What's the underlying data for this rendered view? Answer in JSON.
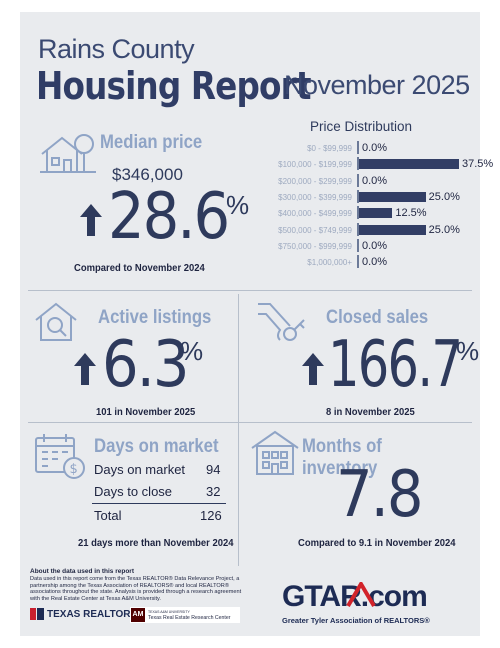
{
  "header": {
    "county": "Rains County",
    "report": "Housing Report",
    "month": "November 2025"
  },
  "price_distribution": {
    "title": "Price Distribution",
    "rows": [
      {
        "label": "$0 - $99,999",
        "value": 0.0,
        "display": "0.0%"
      },
      {
        "label": "$100,000 - $199,999",
        "value": 37.5,
        "display": "37.5%"
      },
      {
        "label": "$200,000 - $299,999",
        "value": 0.0,
        "display": "0.0%"
      },
      {
        "label": "$300,000 - $399,999",
        "value": 25.0,
        "display": "25.0%"
      },
      {
        "label": "$400,000 - $499,999",
        "value": 12.5,
        "display": "12.5%"
      },
      {
        "label": "$500,000 - $749,999",
        "value": 25.0,
        "display": "25.0%"
      },
      {
        "label": "$750,000 - $999,999",
        "value": 0.0,
        "display": "0.0%"
      },
      {
        "label": "$1,000,000+",
        "value": 0.0,
        "display": "0.0%"
      }
    ]
  },
  "chart_data": {
    "type": "bar",
    "title": "Price Distribution",
    "categories": [
      "$0 - $99,999",
      "$100,000 - $199,999",
      "$200,000 - $299,999",
      "$300,000 - $399,999",
      "$400,000 - $499,999",
      "$500,000 - $749,999",
      "$750,000 - $999,999",
      "$1,000,000+"
    ],
    "values": [
      0.0,
      37.5,
      0.0,
      25.0,
      12.5,
      25.0,
      0.0,
      0.0
    ],
    "orientation": "horizontal",
    "unit": "%"
  },
  "median_price": {
    "label": "Median price",
    "value": "$346,000",
    "change": "28.6",
    "pct": "%",
    "compare": "Compared to November 2024"
  },
  "active_listings": {
    "label": "Active listings",
    "change": "6.3",
    "pct": "%",
    "note": "101 in November 2025"
  },
  "closed_sales": {
    "label": "Closed sales",
    "change": "166.7",
    "pct": "%",
    "note": "8 in November 2025"
  },
  "days_on_market": {
    "label": "Days on market",
    "rows": [
      {
        "label": "Days on market",
        "value": "94"
      },
      {
        "label": "Days to close",
        "value": "32"
      }
    ],
    "total_label": "Total",
    "total_value": "126",
    "note": "21 days more than November 2024"
  },
  "months_inventory": {
    "label": "Months of inventory",
    "value": "7.8",
    "compare": "Compared to 9.1 in November 2024"
  },
  "footer": {
    "about_title": "About the data used in this report",
    "about_text": "Data used in this report come from the Texas REALTOR® Data Relevance Project, a partnership among the Texas Association of REALTORS® and local REALTOR® associations throughout the state. Analysis is provided through a research agreement with the Real Estate Center at Texas A&M University.",
    "texas_realtors": "TEXAS REALTORS",
    "tamu_small": "TEXAS A&M UNIVERSITY",
    "tamu_center": "Texas Real Estate Research Center",
    "gtar_brand": "GTAR.com",
    "gtar_full": "Greater Tyler Association of REALTORS®"
  },
  "colors": {
    "background": "#e9ebee",
    "navy": "#2e3a5c",
    "light_blue": "#8fa4c6",
    "bar": "#323e65",
    "gtar_red": "#d2232a"
  }
}
